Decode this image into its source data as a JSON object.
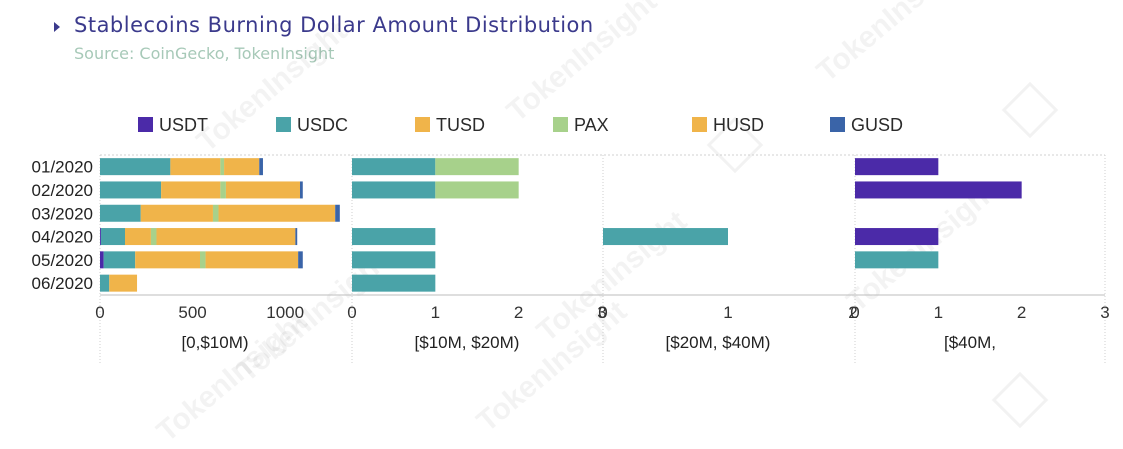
{
  "header": {
    "title": "Stablecoins Burning Dollar Amount Distribution",
    "source": "Source: CoinGecko, TokenInsight"
  },
  "watermark": {
    "text": "TokenInsight"
  },
  "chart_data": {
    "type": "bar",
    "orientation": "horizontal",
    "stacked": true,
    "categories": [
      "01/2020",
      "02/2020",
      "03/2020",
      "04/2020",
      "05/2020",
      "06/2020"
    ],
    "legend": [
      {
        "name": "USDT",
        "color": "#4b2aa8"
      },
      {
        "name": "USDC",
        "color": "#4aa3a8"
      },
      {
        "name": "TUSD",
        "color": "#f0b44a"
      },
      {
        "name": "PAX",
        "color": "#a7d18b"
      },
      {
        "name": "HUSD",
        "color": "#f0b44a"
      },
      {
        "name": "GUSD",
        "color": "#3a64a8"
      }
    ],
    "legend_placement": "top",
    "grid": false,
    "panels": [
      {
        "xlabel": "[0,$10M)",
        "xlim": [
          0,
          1350
        ],
        "xticks": [
          0,
          500,
          1000
        ],
        "tick_labels": [
          "0",
          "500",
          "1000"
        ],
        "series": [
          {
            "name": "USDT",
            "values": [
              0,
              0,
              0,
              5,
              20,
              0
            ]
          },
          {
            "name": "USDC",
            "values": [
              380,
              330,
              220,
              130,
              170,
              50
            ]
          },
          {
            "name": "TUSD",
            "values": [
              270,
              320,
              390,
              140,
              350,
              150
            ]
          },
          {
            "name": "PAX",
            "values": [
              20,
              30,
              30,
              30,
              30,
              0
            ]
          },
          {
            "name": "HUSD",
            "values": [
              190,
              400,
              630,
              750,
              500,
              0
            ]
          },
          {
            "name": "GUSD",
            "values": [
              20,
              15,
              25,
              10,
              25,
              0
            ]
          }
        ]
      },
      {
        "xlabel": "[$10M, $20M)",
        "xlim": [
          0,
          3
        ],
        "xticks": [
          0,
          1,
          2,
          3
        ],
        "tick_labels": [
          "0",
          "1",
          "2",
          "3"
        ],
        "series": [
          {
            "name": "USDT",
            "values": [
              0,
              0,
              0,
              0,
              0,
              0
            ]
          },
          {
            "name": "USDC",
            "values": [
              1,
              1,
              0,
              1,
              1,
              1
            ]
          },
          {
            "name": "TUSD",
            "values": [
              0,
              0,
              0,
              0,
              0,
              0
            ]
          },
          {
            "name": "PAX",
            "values": [
              1,
              1,
              0,
              0,
              0,
              0
            ]
          },
          {
            "name": "HUSD",
            "values": [
              0,
              0,
              0,
              0,
              0,
              0
            ]
          },
          {
            "name": "GUSD",
            "values": [
              0,
              0,
              0,
              0,
              0,
              0
            ]
          }
        ]
      },
      {
        "xlabel": "[$20M, $40M)",
        "xlim": [
          0,
          2
        ],
        "xticks": [
          0,
          1,
          2
        ],
        "tick_labels": [
          "0",
          "1",
          "2"
        ],
        "series": [
          {
            "name": "USDT",
            "values": [
              0,
              0,
              0,
              0,
              0,
              0
            ]
          },
          {
            "name": "USDC",
            "values": [
              0,
              0,
              0,
              1,
              0,
              0
            ]
          },
          {
            "name": "TUSD",
            "values": [
              0,
              0,
              0,
              0,
              0,
              0
            ]
          },
          {
            "name": "PAX",
            "values": [
              0,
              0,
              0,
              0,
              0,
              0
            ]
          },
          {
            "name": "HUSD",
            "values": [
              0,
              0,
              0,
              0,
              0,
              0
            ]
          },
          {
            "name": "GUSD",
            "values": [
              0,
              0,
              0,
              0,
              0,
              0
            ]
          }
        ]
      },
      {
        "xlabel": "[$40M,",
        "xlim": [
          0,
          3
        ],
        "xticks": [
          0,
          1,
          2,
          3
        ],
        "tick_labels": [
          "0",
          "1",
          "2",
          "3"
        ],
        "series": [
          {
            "name": "USDT",
            "values": [
              1,
              2,
              0,
              1,
              0,
              0
            ]
          },
          {
            "name": "USDC",
            "values": [
              0,
              0,
              0,
              0,
              1,
              0
            ]
          },
          {
            "name": "TUSD",
            "values": [
              0,
              0,
              0,
              0,
              0,
              0
            ]
          },
          {
            "name": "PAX",
            "values": [
              0,
              0,
              0,
              0,
              0,
              0
            ]
          },
          {
            "name": "HUSD",
            "values": [
              0,
              0,
              0,
              0,
              0,
              0
            ]
          },
          {
            "name": "GUSD",
            "values": [
              0,
              0,
              0,
              0,
              0,
              0
            ]
          }
        ]
      }
    ]
  }
}
